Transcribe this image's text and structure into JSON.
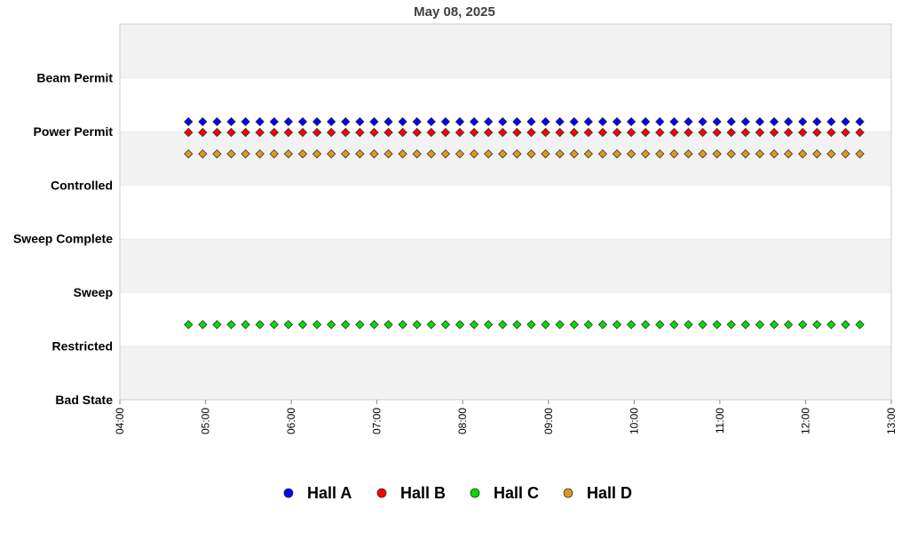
{
  "chart_data": {
    "type": "scatter",
    "title": "May 08, 2025",
    "y_categories": [
      "Bad State",
      "Restricted",
      "Sweep",
      "Sweep Complete",
      "Controlled",
      "Power Permit",
      "Beam Permit"
    ],
    "x_ticks": [
      "04:00",
      "05:00",
      "06:00",
      "07:00",
      "08:00",
      "09:00",
      "10:00",
      "11:00",
      "12:00",
      "13:00"
    ],
    "xlim": [
      "04:00",
      "13:00"
    ],
    "ylim": [
      0,
      7
    ],
    "banded_background": true,
    "legend_position": "bottom",
    "x_times": [
      "04:48",
      "04:58",
      "05:08",
      "05:18",
      "05:28",
      "05:38",
      "05:48",
      "05:58",
      "06:08",
      "06:18",
      "06:28",
      "06:38",
      "06:48",
      "06:58",
      "07:08",
      "07:18",
      "07:28",
      "07:38",
      "07:48",
      "07:58",
      "08:08",
      "08:18",
      "08:28",
      "08:38",
      "08:48",
      "08:58",
      "09:08",
      "09:18",
      "09:28",
      "09:38",
      "09:48",
      "09:58",
      "10:08",
      "10:18",
      "10:28",
      "10:38",
      "10:48",
      "10:58",
      "11:08",
      "11:18",
      "11:28",
      "11:38",
      "11:48",
      "11:58",
      "12:08",
      "12:18",
      "12:28",
      "12:38"
    ],
    "series": [
      {
        "name": "Hall A",
        "color": "#0000ff",
        "y": 5.18
      },
      {
        "name": "Hall B",
        "color": "#ff0000",
        "y": 4.98
      },
      {
        "name": "Hall C",
        "color": "#00dd00",
        "y": 1.4
      },
      {
        "name": "Hall D",
        "color": "#dd9a1a",
        "y": 4.58
      }
    ]
  }
}
